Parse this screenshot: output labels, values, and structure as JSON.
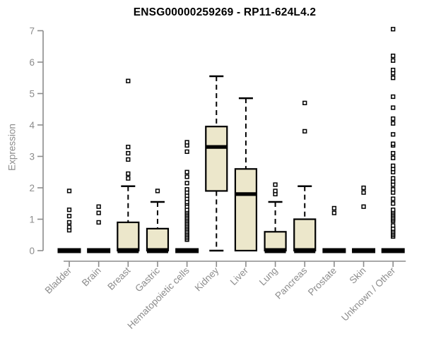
{
  "colors": {
    "background": "#ffffff",
    "box_fill": "#ece7cb",
    "box_stroke": "#000000",
    "median": "#000000",
    "outlier_stroke": "#000000",
    "axis": "#8c8c8c",
    "title": "#000000"
  },
  "chart_data": {
    "type": "boxplot",
    "title": "ENSG00000259269 - RP11-624L4.2",
    "xlabel": "",
    "ylabel": "Expression",
    "ylim": [
      0,
      7
    ],
    "yticks": [
      0,
      1,
      2,
      3,
      4,
      5,
      6,
      7
    ],
    "grid": "off",
    "legend": "none",
    "categories": [
      "Bladder",
      "Brain",
      "Breast",
      "Gastric",
      "Hematopoietic cells",
      "Kidney",
      "Liver",
      "Lung",
      "Pancreas",
      "Prostate",
      "Skin",
      "Unknown / Other"
    ],
    "boxes": [
      {
        "label": "Bladder",
        "low": 0,
        "q1": 0,
        "median": 0,
        "q3": 0,
        "high": 0,
        "outliers": [
          0.65,
          0.75,
          0.9,
          1.1,
          1.3,
          1.9
        ]
      },
      {
        "label": "Brain",
        "low": 0,
        "q1": 0,
        "median": 0,
        "q3": 0,
        "high": 0,
        "outliers": [
          0.9,
          1.2,
          1.4
        ]
      },
      {
        "label": "Breast",
        "low": 0,
        "q1": 0,
        "median": 0,
        "q3": 0.9,
        "high": 2.05,
        "outliers": [
          2.3,
          2.45,
          2.9,
          3.1,
          3.3,
          5.4
        ]
      },
      {
        "label": "Gastric",
        "low": 0,
        "q1": 0,
        "median": 0,
        "q3": 0.7,
        "high": 1.55,
        "outliers": [
          1.9
        ]
      },
      {
        "label": "Hematopoietic cells",
        "low": 0,
        "q1": 0,
        "median": 0,
        "q3": 0,
        "high": 0,
        "outliers": [
          0.35,
          0.4,
          0.45,
          0.5,
          0.55,
          0.6,
          0.65,
          0.7,
          0.75,
          0.8,
          0.85,
          0.9,
          0.95,
          1.0,
          1.05,
          1.1,
          1.15,
          1.2,
          1.25,
          1.3,
          1.4,
          1.5,
          1.55,
          1.65,
          1.75,
          1.85,
          1.95,
          2.15,
          2.35,
          2.5,
          3.15,
          3.35,
          3.45
        ]
      },
      {
        "label": "Kidney",
        "low": 0,
        "q1": 1.9,
        "median": 3.3,
        "q3": 3.95,
        "high": 5.55,
        "outliers": []
      },
      {
        "label": "Liver",
        "low": 0,
        "q1": 0,
        "median": 1.8,
        "q3": 2.6,
        "high": 4.85,
        "outliers": []
      },
      {
        "label": "Lung",
        "low": 0,
        "q1": 0,
        "median": 0,
        "q3": 0.6,
        "high": 1.55,
        "outliers": [
          1.8,
          1.9,
          2.1
        ]
      },
      {
        "label": "Pancreas",
        "low": 0,
        "q1": 0,
        "median": 0,
        "q3": 1.0,
        "high": 2.05,
        "outliers": [
          3.8,
          4.7
        ]
      },
      {
        "label": "Prostate",
        "low": 0,
        "q1": 0,
        "median": 0,
        "q3": 0,
        "high": 0,
        "outliers": [
          1.2,
          1.35
        ]
      },
      {
        "label": "Skin",
        "low": 0,
        "q1": 0,
        "median": 0,
        "q3": 0,
        "high": 0,
        "outliers": [
          1.4,
          1.85,
          2.0
        ]
      },
      {
        "label": "Unknown / Other",
        "low": 0,
        "q1": 0,
        "median": 0,
        "q3": 0,
        "high": 0,
        "outliers": [
          0.45,
          0.5,
          0.55,
          0.6,
          0.65,
          0.7,
          0.8,
          0.95,
          1.0,
          1.05,
          1.1,
          1.15,
          1.2,
          1.25,
          1.3,
          1.5,
          1.65,
          1.85,
          1.95,
          2.1,
          2.2,
          2.3,
          2.5,
          2.6,
          2.7,
          2.95,
          3.1,
          3.35,
          3.4,
          3.7,
          4.05,
          4.2,
          4.55,
          4.9,
          5.5,
          5.65,
          5.75,
          6.05,
          6.2,
          7.05
        ]
      }
    ]
  }
}
